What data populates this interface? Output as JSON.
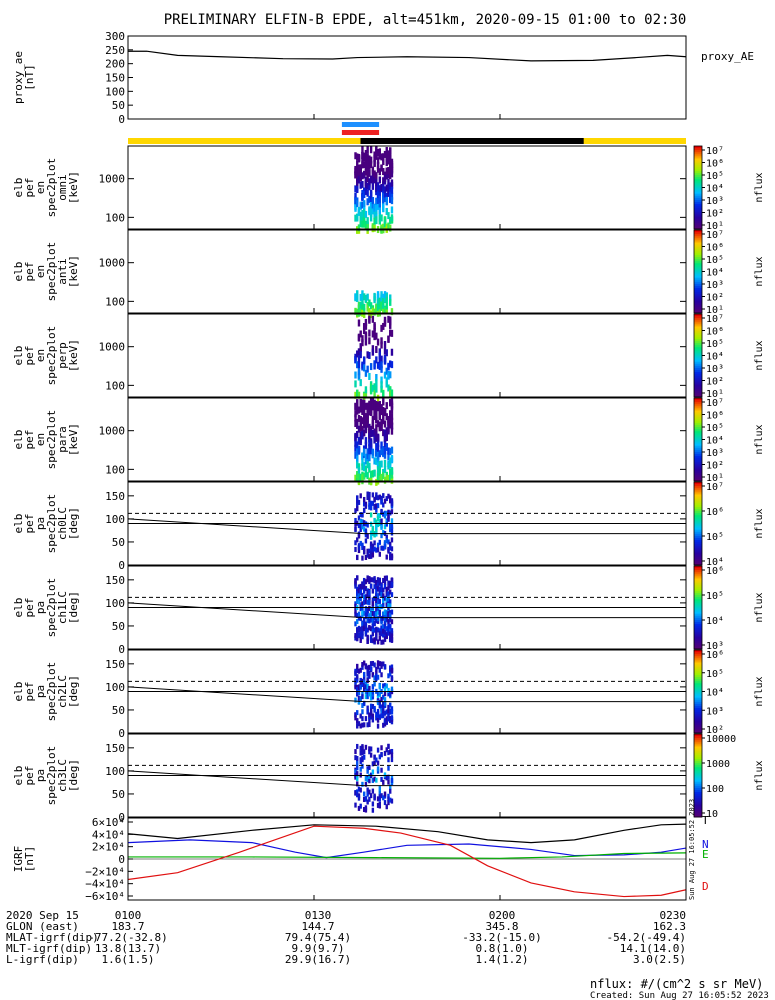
{
  "title": "PRELIMINARY ELFIN-B EPDE, alt=451km, 2020-09-15 01:00 to 02:30",
  "colors": {
    "bar_yellow": "#ffd700",
    "bar_black": "#000000",
    "seg_blue": "#1e90ff",
    "seg_red": "#ee2222",
    "bx": "#000000",
    "by": "#1010e0",
    "bz": "#00b000",
    "bd": "#e01010"
  },
  "chart_data": [
    {
      "type": "line",
      "name": "proxy_ae",
      "ylabel": [
        "proxy_ae",
        "[nT]"
      ],
      "yticks": [
        "300",
        "250",
        "200",
        "150",
        "100",
        "50",
        "0"
      ],
      "ylim": [
        0,
        300
      ],
      "legend": "proxy_AE",
      "x_min": [
        0,
        90
      ],
      "values": [
        [
          0,
          245
        ],
        [
          3,
          245
        ],
        [
          8,
          230
        ],
        [
          15,
          225
        ],
        [
          25,
          218
        ],
        [
          33,
          217
        ],
        [
          37,
          222
        ],
        [
          45,
          225
        ],
        [
          55,
          222
        ],
        [
          65,
          210
        ],
        [
          75,
          212
        ],
        [
          82,
          222
        ],
        [
          87,
          230
        ],
        [
          90,
          225
        ]
      ]
    },
    {
      "type": "heatmap",
      "name": "spec2plot_omni",
      "ylabel": [
        "elb",
        "pef",
        "en",
        "spec2plot",
        "omni",
        "[keV]"
      ],
      "yticks": [
        "1000",
        "100"
      ],
      "ylim": [
        50,
        7000
      ],
      "scale": "log",
      "colorbar": {
        "labels": [
          "10^7",
          "10^6",
          "10^5",
          "10^4",
          "10^3",
          "10^2",
          "10^1"
        ],
        "title": "nflux"
      }
    },
    {
      "type": "heatmap",
      "name": "spec2plot_anti",
      "ylabel": [
        "elb",
        "pef",
        "en",
        "spec2plot",
        "anti",
        "[keV]"
      ],
      "yticks": [
        "1000",
        "100"
      ],
      "ylim": [
        50,
        7000
      ],
      "scale": "log",
      "colorbar": {
        "labels": [
          "10^7",
          "10^6",
          "10^5",
          "10^4",
          "10^3",
          "10^2",
          "10^1"
        ],
        "title": "nflux"
      }
    },
    {
      "type": "heatmap",
      "name": "spec2plot_perp",
      "ylabel": [
        "elb",
        "pef",
        "en",
        "spec2plot",
        "perp",
        "[keV]"
      ],
      "yticks": [
        "1000",
        "100"
      ],
      "ylim": [
        50,
        7000
      ],
      "scale": "log",
      "colorbar": {
        "labels": [
          "10^7",
          "10^6",
          "10^5",
          "10^4",
          "10^3",
          "10^2",
          "10^1"
        ],
        "title": "nflux"
      }
    },
    {
      "type": "heatmap",
      "name": "spec2plot_para",
      "ylabel": [
        "elb",
        "pef",
        "en",
        "spec2plot",
        "para",
        "[keV]"
      ],
      "yticks": [
        "1000",
        "100"
      ],
      "ylim": [
        50,
        7000
      ],
      "scale": "log",
      "colorbar": {
        "labels": [
          "10^7",
          "10^6",
          "10^5",
          "10^4",
          "10^3",
          "10^2",
          "10^1"
        ],
        "title": "nflux"
      }
    },
    {
      "type": "heatmap",
      "name": "spec2plot_ch0LC",
      "ylabel": [
        "elb",
        "pef",
        "pa",
        "spec2plot",
        "ch0LC",
        "[deg]"
      ],
      "yticks": [
        "150",
        "100",
        "50",
        "0"
      ],
      "ylim": [
        0,
        180
      ],
      "colorbar": {
        "labels": [
          "10^7",
          "10^6",
          "10^5",
          "10^4"
        ],
        "title": "nflux"
      }
    },
    {
      "type": "heatmap",
      "name": "spec2plot_ch1LC",
      "ylabel": [
        "elb",
        "pef",
        "pa",
        "spec2plot",
        "ch1LC",
        "[deg]"
      ],
      "yticks": [
        "150",
        "100",
        "50",
        "0"
      ],
      "ylim": [
        0,
        180
      ],
      "colorbar": {
        "labels": [
          "10^6",
          "10^5",
          "10^4",
          "10^3"
        ],
        "title": "nflux"
      }
    },
    {
      "type": "heatmap",
      "name": "spec2plot_ch2LC",
      "ylabel": [
        "elb",
        "pef",
        "pa",
        "spec2plot",
        "ch2LC",
        "[deg]"
      ],
      "yticks": [
        "150",
        "100",
        "50",
        "0"
      ],
      "ylim": [
        0,
        180
      ],
      "colorbar": {
        "labels": [
          "10^6",
          "10^5",
          "10^4",
          "10^3",
          "10^2"
        ],
        "title": "nflux"
      }
    },
    {
      "type": "heatmap",
      "name": "spec2plot_ch3LC",
      "ylabel": [
        "elb",
        "pef",
        "pa",
        "spec2plot",
        "ch3LC",
        "[deg]"
      ],
      "yticks": [
        "150",
        "100",
        "50",
        "0"
      ],
      "ylim": [
        0,
        180
      ],
      "colorbar": {
        "labels": [
          "10000",
          "1000",
          "100",
          "10"
        ],
        "title": "nflux"
      }
    },
    {
      "type": "line",
      "name": "igrf",
      "ylabel": [
        "IGRF",
        "[nT]"
      ],
      "yticks": [
        "6×10⁴",
        "4×10⁴",
        "2×10⁴",
        "0",
        "−2×10⁴",
        "−4×10⁴",
        "−6×10⁴"
      ],
      "ylim": [
        -60000,
        60000
      ],
      "series": [
        {
          "name": "N",
          "values": [
            [
              0,
              24000
            ],
            [
              10,
              28000
            ],
            [
              20,
              24000
            ],
            [
              27,
              10000
            ],
            [
              32,
              2000
            ],
            [
              38,
              10000
            ],
            [
              45,
              20000
            ],
            [
              55,
              22000
            ],
            [
              65,
              14000
            ],
            [
              72,
              5000
            ],
            [
              80,
              6000
            ],
            [
              86,
              10000
            ],
            [
              90,
              16000
            ]
          ]
        },
        {
          "name": "E",
          "values": [
            [
              0,
              3000
            ],
            [
              20,
              3000
            ],
            [
              40,
              2000
            ],
            [
              60,
              1000
            ],
            [
              70,
              3000
            ],
            [
              80,
              8000
            ],
            [
              90,
              9000
            ]
          ]
        },
        {
          "name": "D",
          "values": [
            [
              0,
              -30000
            ],
            [
              8,
              -20000
            ],
            [
              18,
              10000
            ],
            [
              30,
              48000
            ],
            [
              38,
              45000
            ],
            [
              44,
              38000
            ],
            [
              52,
              20000
            ],
            [
              58,
              -10000
            ],
            [
              65,
              -35000
            ],
            [
              72,
              -48000
            ],
            [
              80,
              -55000
            ],
            [
              86,
              -53000
            ],
            [
              90,
              -45000
            ]
          ]
        },
        {
          "name": "T",
          "values": [
            [
              0,
              37000
            ],
            [
              8,
              30000
            ],
            [
              20,
              42000
            ],
            [
              30,
              50000
            ],
            [
              40,
              48000
            ],
            [
              50,
              40000
            ],
            [
              58,
              28000
            ],
            [
              65,
              24000
            ],
            [
              72,
              28000
            ],
            [
              80,
              42000
            ],
            [
              86,
              50000
            ],
            [
              90,
              51000
            ]
          ]
        }
      ]
    }
  ],
  "xaxis": {
    "rows": [
      {
        "label": "2020 Sep 15",
        "values": [
          "0100",
          "0130",
          "0200",
          "0230"
        ]
      },
      {
        "label": "GLON (east)",
        "values": [
          "183.7",
          "144.7",
          "345.8",
          "162.3"
        ]
      },
      {
        "label": "MLAT-igrf(dip)",
        "values": [
          "-77.2(-32.8)",
          "79.4(75.4)",
          "-33.2(-15.0)",
          "-54.2(-49.4)"
        ]
      },
      {
        "label": "MLT-igrf(dip)",
        "values": [
          "13.8(13.7)",
          "9.9(9.7)",
          "0.8(1.0)",
          "14.1(14.0)"
        ]
      },
      {
        "label": "L-igrf(dip)",
        "values": [
          "1.6(1.5)",
          "29.9(16.7)",
          "1.4(1.2)",
          "3.0(2.5)"
        ]
      }
    ]
  },
  "footer": {
    "units": "nflux: #/(cm^2 s sr MeV)",
    "created": "Created: Sun Aug 27 16:05:52 2023",
    "stamp": "Sun Aug 27 16:05:52 2023"
  }
}
